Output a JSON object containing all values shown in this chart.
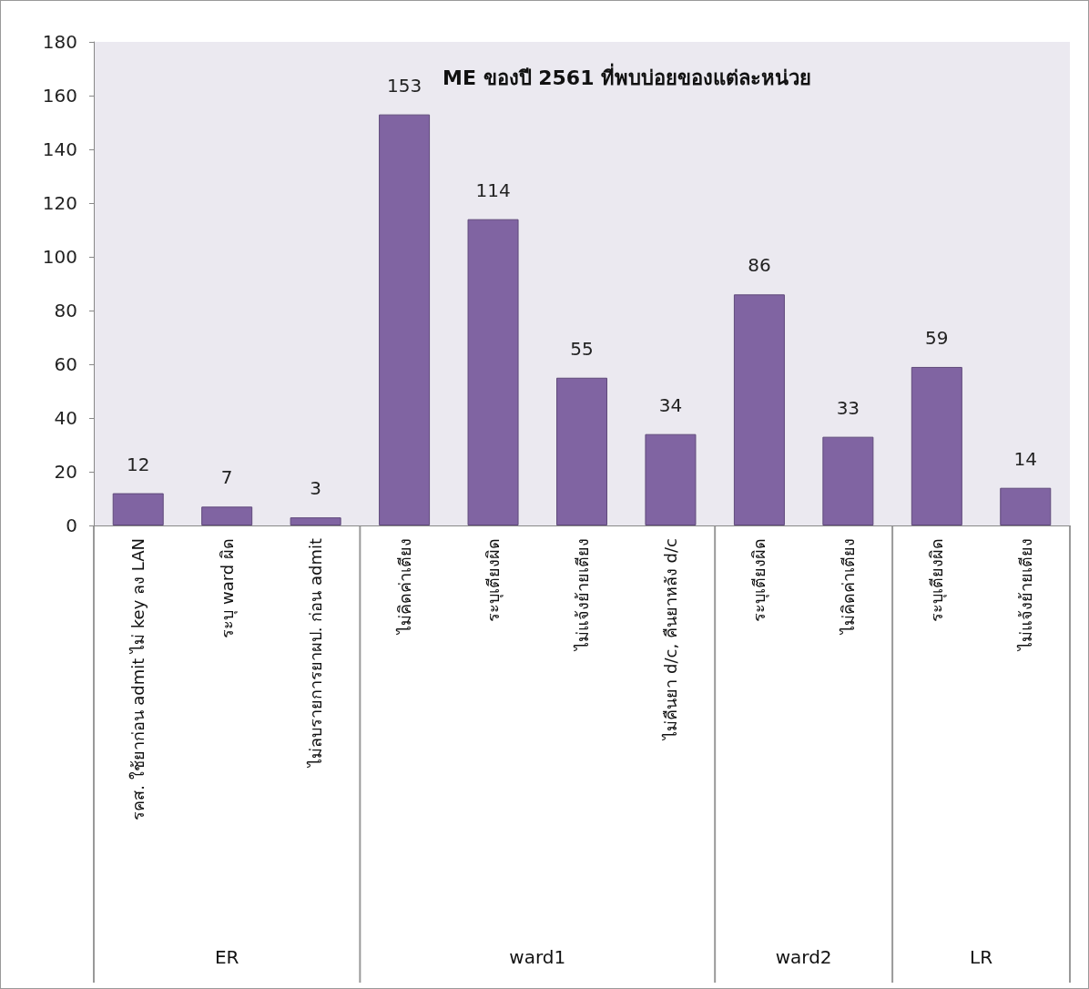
{
  "chart_data": {
    "type": "bar",
    "title": "ME ของปี 2561 ที่พบบ่อยของแต่ละหน่วย",
    "categories": [
      "รคส. ใช้ยาก่อน admit ไม่ key ลง LAN",
      "ระบุ ward ผิด",
      "ไม่ลบรายการยาผป. ก่อน admit",
      "ไม่คิดค่าเตียง",
      "ระบุเตียงผิด",
      "ไม่แจ้งย้ายเตียง",
      "ไม่คืนยา d/c, คืนยาหลัง d/c",
      "ระบุเตียงผิด",
      "ไม่คิดค่าเตียง",
      "ระบุเตียงผิด",
      "ไม่แจ้งย้ายเตียง"
    ],
    "values": [
      12,
      7,
      3,
      153,
      114,
      55,
      34,
      86,
      33,
      59,
      14
    ],
    "color": "#8064a2",
    "ylim": [
      0,
      180
    ],
    "yticks": [
      0,
      20,
      40,
      60,
      80,
      100,
      120,
      140,
      160,
      180
    ],
    "data_labels": true,
    "grid": false,
    "annotations": [
      "ER",
      "ward1",
      "ward2",
      "LR"
    ]
  }
}
